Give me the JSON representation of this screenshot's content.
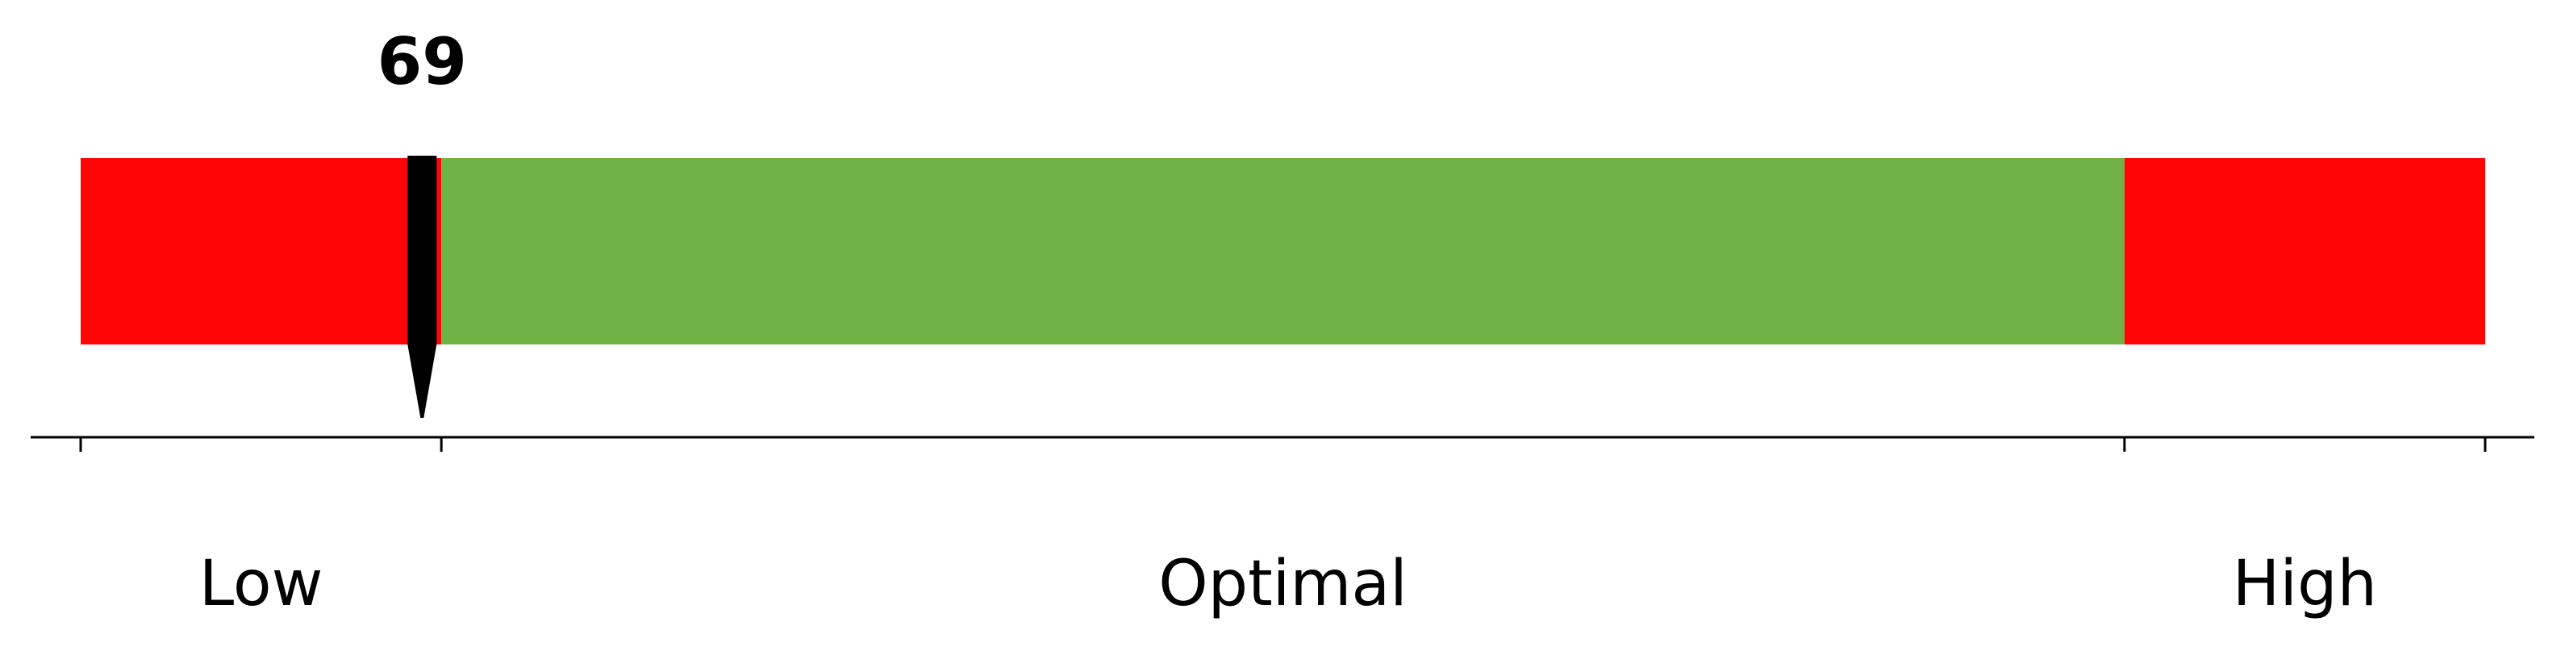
{
  "chart_data": {
    "type": "bar",
    "orientation": "horizontal",
    "x_range": [
      0,
      100
    ],
    "segments": [
      {
        "label": "Low",
        "start": 0,
        "end": 15,
        "color": "#ff0505"
      },
      {
        "label": "Optimal",
        "start": 15,
        "end": 85,
        "color": "#71b245"
      },
      {
        "label": "High",
        "start": 85,
        "end": 100,
        "color": "#ff0505"
      }
    ],
    "tick_values": [
      0,
      15,
      85,
      100
    ],
    "marker": {
      "value": 14.2,
      "label": "69",
      "color": "#000000"
    },
    "grid": false,
    "axis_line_color": "#000000"
  }
}
